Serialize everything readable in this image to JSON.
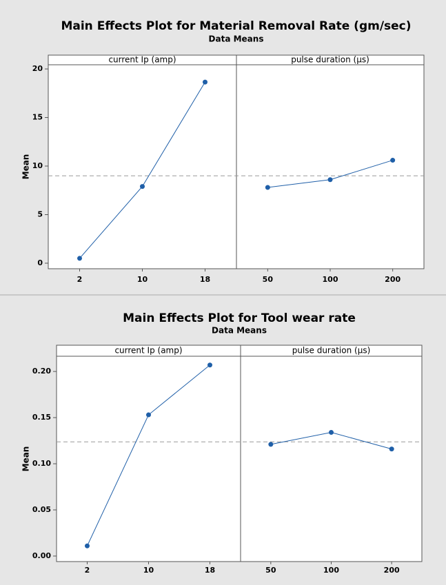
{
  "chart_data": [
    {
      "type": "line",
      "title": "Main Effects Plot for Material Removal Rate (gm/sec)",
      "subtitle": "Data Means",
      "ylabel": "Mean",
      "ylim": [
        -0.57,
        20.43
      ],
      "yticks": [
        0,
        5,
        10,
        15,
        20
      ],
      "reference_line": 9.0,
      "color": "#1f5fa8",
      "panels": [
        {
          "title": "current Ip (amp)",
          "categories": [
            "2",
            "10",
            "18"
          ],
          "values": [
            0.5,
            7.9,
            18.65
          ]
        },
        {
          "title": "pulse duration (µs)",
          "categories": [
            "50",
            "100",
            "200"
          ],
          "values": [
            7.8,
            8.6,
            10.6
          ]
        }
      ]
    },
    {
      "type": "line",
      "title": "Main Effects Plot for Tool wear rate",
      "subtitle": "Data Means",
      "ylabel": "Mean",
      "ylim": [
        -0.006,
        0.2165
      ],
      "yticks": [
        {
          "value": 0,
          "label": "0.00"
        },
        {
          "value": 0.05,
          "label": "0.05"
        },
        {
          "value": 0.1,
          "label": "0.10"
        },
        {
          "value": 0.15,
          "label": "0.15"
        },
        {
          "value": 0.2,
          "label": "0.20"
        }
      ],
      "reference_line": 0.1237,
      "color": "#1f5fa8",
      "panels": [
        {
          "title": "current Ip (amp)",
          "categories": [
            "2",
            "10",
            "18"
          ],
          "values": [
            0.011,
            0.153,
            0.207
          ]
        },
        {
          "title": "pulse duration (µs)",
          "categories": [
            "50",
            "100",
            "200"
          ],
          "values": [
            0.121,
            0.134,
            0.116
          ]
        }
      ]
    }
  ]
}
